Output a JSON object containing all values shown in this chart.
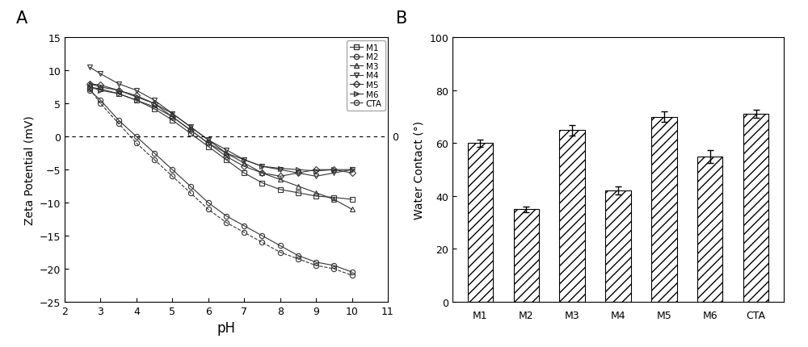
{
  "panel_A_label": "A",
  "panel_B_label": "B",
  "xlabel_A": "pH",
  "ylabel_A": "Zeta Potential (mV)",
  "xlim_A": [
    2,
    11
  ],
  "ylim_A": [
    -25,
    15
  ],
  "xticks_A": [
    2,
    3,
    4,
    5,
    6,
    7,
    8,
    9,
    10,
    11
  ],
  "yticks_A": [
    -25,
    -20,
    -15,
    -10,
    -5,
    0,
    5,
    10,
    15
  ],
  "zero_label": "0",
  "series": {
    "M1": {
      "pH": [
        2.7,
        3.0,
        3.5,
        4.0,
        4.5,
        5.0,
        5.5,
        6.0,
        6.5,
        7.0,
        7.5,
        8.0,
        8.5,
        9.0,
        9.5,
        10.0
      ],
      "zeta": [
        7.5,
        7.2,
        6.5,
        5.5,
        4.2,
        2.5,
        0.5,
        -1.5,
        -3.5,
        -5.5,
        -7.0,
        -8.0,
        -8.5,
        -9.0,
        -9.2,
        -9.5
      ],
      "marker": "s"
    },
    "M2": {
      "pH": [
        2.7,
        3.0,
        3.5,
        4.0,
        4.5,
        5.0,
        5.5,
        6.0,
        6.5,
        7.0,
        7.5,
        8.0,
        8.5,
        9.0,
        9.5,
        10.0
      ],
      "zeta": [
        7.0,
        5.5,
        2.5,
        0.0,
        -2.5,
        -5.0,
        -7.5,
        -10.0,
        -12.0,
        -13.5,
        -15.0,
        -16.5,
        -18.0,
        -19.0,
        -19.5,
        -20.5
      ],
      "marker": "o"
    },
    "M3": {
      "pH": [
        2.7,
        3.0,
        3.5,
        4.0,
        4.5,
        5.0,
        5.5,
        6.0,
        6.5,
        7.0,
        7.5,
        8.0,
        8.5,
        9.0,
        9.5,
        10.0
      ],
      "zeta": [
        8.0,
        7.5,
        7.0,
        6.0,
        5.0,
        3.5,
        1.5,
        -0.5,
        -2.5,
        -4.0,
        -5.5,
        -6.5,
        -7.5,
        -8.5,
        -9.5,
        -11.0
      ],
      "marker": "^"
    },
    "M4": {
      "pH": [
        2.7,
        3.0,
        3.5,
        4.0,
        4.5,
        5.0,
        5.5,
        6.0,
        6.5,
        7.0,
        7.5,
        8.0,
        8.5,
        9.0,
        9.5,
        10.0
      ],
      "zeta": [
        10.5,
        9.5,
        8.0,
        7.0,
        5.5,
        3.5,
        1.5,
        -0.5,
        -2.0,
        -3.5,
        -4.5,
        -5.0,
        -5.5,
        -6.0,
        -5.5,
        -5.0
      ],
      "marker": "v"
    },
    "M5": {
      "pH": [
        2.7,
        3.0,
        3.5,
        4.0,
        4.5,
        5.0,
        5.5,
        6.0,
        6.5,
        7.0,
        7.5,
        8.0,
        8.5,
        9.0,
        9.5,
        10.0
      ],
      "zeta": [
        8.0,
        7.8,
        7.0,
        6.2,
        5.0,
        3.0,
        1.0,
        -1.0,
        -3.0,
        -4.5,
        -5.5,
        -6.0,
        -5.5,
        -5.0,
        -5.0,
        -5.5
      ],
      "marker": "D"
    },
    "M6": {
      "pH": [
        2.7,
        3.0,
        3.5,
        4.0,
        4.5,
        5.0,
        5.5,
        6.0,
        6.5,
        7.0,
        7.5,
        8.0,
        8.5,
        9.0,
        9.5,
        10.0
      ],
      "zeta": [
        7.5,
        7.0,
        6.5,
        5.5,
        4.5,
        3.0,
        1.0,
        -1.0,
        -2.5,
        -3.5,
        -4.5,
        -4.8,
        -5.0,
        -5.2,
        -5.0,
        -5.0
      ],
      "marker": ">"
    },
    "CTA": {
      "pH": [
        2.7,
        3.0,
        3.5,
        4.0,
        4.5,
        5.0,
        5.5,
        6.0,
        6.5,
        7.0,
        7.5,
        8.0,
        8.5,
        9.0,
        9.5,
        10.0
      ],
      "zeta": [
        7.2,
        5.0,
        2.0,
        -1.0,
        -3.5,
        -6.0,
        -8.5,
        -11.0,
        -13.0,
        -14.5,
        -16.0,
        -17.5,
        -18.5,
        -19.5,
        -20.0,
        -21.0
      ],
      "marker": "o"
    }
  },
  "series_order": [
    "M1",
    "M2",
    "M3",
    "M4",
    "M5",
    "M6",
    "CTA"
  ],
  "line_styles": {
    "M1": "-",
    "M2": "-",
    "M3": "-",
    "M4": "-",
    "M5": "-",
    "M6": "-",
    "CTA": "--"
  },
  "bar_categories": [
    "M1",
    "M2",
    "M3",
    "M4",
    "M5",
    "M6",
    "CTA"
  ],
  "bar_values": [
    60.0,
    35.0,
    65.0,
    42.0,
    70.0,
    55.0,
    71.0
  ],
  "bar_errors": [
    1.5,
    1.0,
    2.0,
    1.5,
    2.0,
    2.5,
    1.5
  ],
  "ylabel_B": "Water Contact (°)",
  "ylim_B": [
    0,
    100
  ],
  "yticks_B": [
    0,
    20,
    40,
    60,
    80,
    100
  ],
  "hatch": "///",
  "background_color": "#ffffff",
  "line_color": "#333333"
}
